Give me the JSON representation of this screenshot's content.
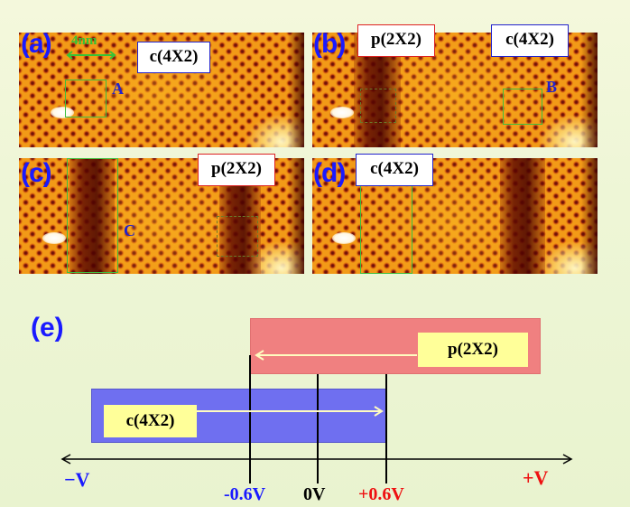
{
  "panels": {
    "a": {
      "label": "(a)",
      "tag": "c(4X2)",
      "region": "A",
      "scale": "4nm"
    },
    "b": {
      "label": "(b)",
      "tag_left": "p(2X2)",
      "tag_right": "c(4X2)",
      "region": "B"
    },
    "c": {
      "label": "(c)",
      "tag": "p(2X2)",
      "region": "C"
    },
    "d": {
      "label": "(d)",
      "tag": "c(4X2)"
    }
  },
  "diagram": {
    "label": "(e)",
    "red_bar_text": "p(2X2)",
    "blue_bar_text": "c(4X2)",
    "axis": {
      "left_end": "−V",
      "right_end": "+V",
      "ticks": [
        "-0.6V",
        "0V",
        "+0.6V"
      ]
    }
  },
  "colors": {
    "panel_label": "#1a1aff",
    "red_bar": "#f08080",
    "blue_bar": "#6f6ff0",
    "arrow": "#fffcc0",
    "tick_negative": "#1a1aff",
    "tick_zero": "#000000",
    "tick_positive": "#ee1111",
    "minus_v": "#1a1aff",
    "plus_v": "#ee1111"
  }
}
